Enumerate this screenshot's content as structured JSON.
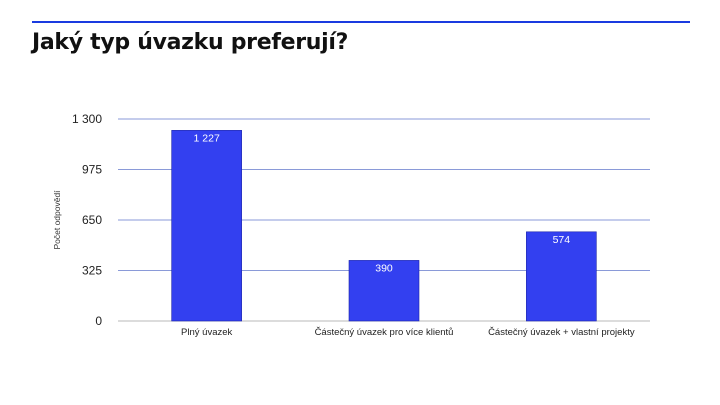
{
  "slide": {
    "title": "Jaký typ úvazku preferují?",
    "accent_color": "#1a3be0"
  },
  "chart_data": {
    "type": "bar",
    "title": "",
    "xlabel": "",
    "ylabel": "Počet odpovědí",
    "categories": [
      "Plný úvazek",
      "Částečný úvazek pro více klientů",
      "Částečný úvazek + vlastní projekty"
    ],
    "values": [
      1227,
      390,
      574
    ],
    "data_labels": [
      "1 227",
      "390",
      "574"
    ],
    "yticks": [
      0,
      325,
      650,
      975,
      1300
    ],
    "ytick_labels": [
      "0",
      "325",
      "650",
      "975",
      "1 300"
    ],
    "ylim": [
      0,
      1300
    ],
    "grid": true,
    "legend": "none",
    "bar_color": "#3340f0",
    "grid_color": "#8a9ad8"
  }
}
